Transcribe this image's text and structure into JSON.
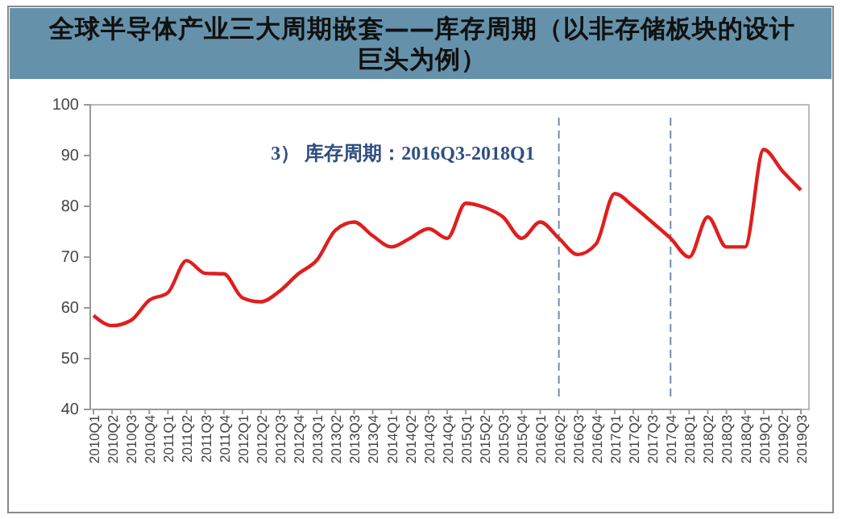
{
  "chart_data": {
    "type": "line",
    "title": "全球半导体产业三大周期嵌套——库存周期（以非存储板块的设计巨头为例）",
    "categories": [
      "2010Q1",
      "2010Q2",
      "2010Q3",
      "2010Q4",
      "2011Q1",
      "2011Q2",
      "2011Q3",
      "2011Q4",
      "2012Q1",
      "2012Q2",
      "2012Q3",
      "2012Q4",
      "2013Q1",
      "2013Q2",
      "2013Q3",
      "2013Q4",
      "2014Q1",
      "2014Q2",
      "2014Q3",
      "2014Q4",
      "2015Q1",
      "2015Q2",
      "2015Q3",
      "2015Q4",
      "2016Q1",
      "2016Q2",
      "2016Q3",
      "2016Q4",
      "2017Q1",
      "2017Q2",
      "2017Q3",
      "2017Q4",
      "2018Q1",
      "2018Q2",
      "2018Q3",
      "2018Q4",
      "2019Q1",
      "2019Q2",
      "2019Q3"
    ],
    "series": [
      {
        "color": "#e01e1e",
        "values": [
          58.5,
          56.5,
          57.5,
          61.5,
          63,
          69.3,
          66.8,
          66.7,
          62,
          61.2,
          63.3,
          66.7,
          69.4,
          75.3,
          76.9,
          74.2,
          72,
          73.7,
          75.6,
          73.7,
          80.6,
          79.8,
          77.9,
          73.7,
          76.9,
          73.7,
          70.5,
          72.6,
          82.5,
          80,
          76.9,
          73.7,
          70,
          77.9,
          72,
          72,
          91.2,
          87,
          83.2
        ]
      }
    ],
    "ylim": [
      40,
      100
    ],
    "yticks": [
      40,
      50,
      60,
      70,
      80,
      90,
      100
    ],
    "grid": false,
    "marker": "none",
    "line_style": "solid",
    "ref_lines": [
      {
        "axis": "x",
        "value": "2016Q2",
        "color": "#6f8fb0",
        "line_style": "dashed"
      },
      {
        "axis": "x",
        "value": "2017Q4",
        "color": "#6f8fb0",
        "line_style": "dashed"
      }
    ],
    "annotations": [
      "3） 库存周期：2016Q3-2018Q1"
    ]
  }
}
